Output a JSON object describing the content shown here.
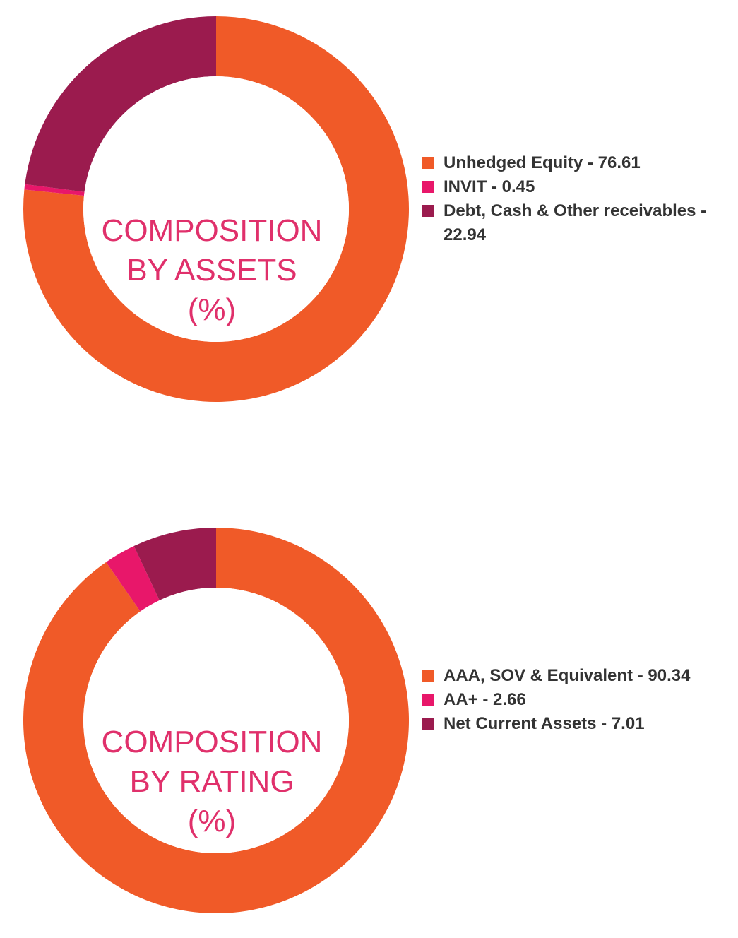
{
  "chart_data": [
    {
      "type": "pie",
      "title": "COMPOSITION BY ASSETS (%)",
      "title_lines": [
        "COMPOSITION",
        "BY ASSETS",
        "(%)"
      ],
      "categories": [
        "Unhedged Equity",
        "INVIT",
        "Debt, Cash & Other receivables"
      ],
      "values": [
        76.61,
        0.45,
        22.94
      ],
      "colors": [
        "#f05a28",
        "#e8176a",
        "#9b1b4e"
      ],
      "legend_labels": [
        "Unhedged Equity - 76.61",
        "INVIT - 0.45",
        "Debt, Cash & Other receivables - 22.94"
      ],
      "legend_placement": "right"
    },
    {
      "type": "pie",
      "title": "COMPOSITION BY RATING (%)",
      "title_lines": [
        "COMPOSITION",
        "BY RATING",
        "(%)"
      ],
      "categories": [
        "AAA, SOV & Equivalent",
        "AA+",
        "Net Current Assets"
      ],
      "values": [
        90.34,
        2.66,
        7.01
      ],
      "colors": [
        "#f05a28",
        "#e8176a",
        "#9b1b4e"
      ],
      "legend_labels": [
        "AAA, SOV & Equivalent - 90.34",
        "AA+ - 2.66",
        "Net Current Assets - 7.01"
      ],
      "legend_placement": "right"
    }
  ],
  "title_color": "#e0306b"
}
